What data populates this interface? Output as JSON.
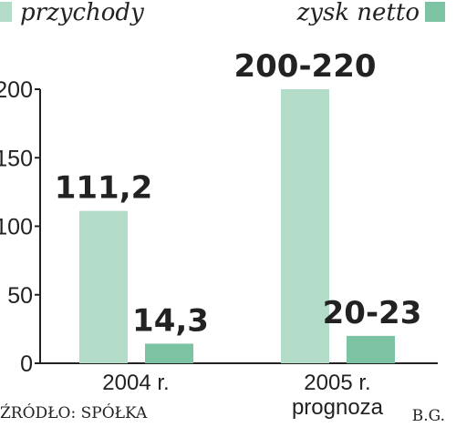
{
  "chart_data": {
    "type": "bar",
    "categories": [
      "2004 r.",
      "2005 r."
    ],
    "category_sublabels": [
      "",
      "prognoza"
    ],
    "series": [
      {
        "name": "przychody",
        "values": [
          111.2,
          200
        ],
        "labels": [
          "111,2",
          "200-220"
        ],
        "color": "#b3dcc8"
      },
      {
        "name": "zysk netto",
        "values": [
          14.3,
          20
        ],
        "labels": [
          "14,3",
          "20-23"
        ],
        "color": "#7cc3a3"
      }
    ],
    "ylim": [
      0,
      200
    ],
    "yticks": [
      "0",
      "50",
      "100",
      "150",
      "200"
    ],
    "grid": false,
    "legend": "top"
  },
  "footer": {
    "source": "ŹRÓDŁO: SPÓŁKA",
    "author": "B.G."
  }
}
